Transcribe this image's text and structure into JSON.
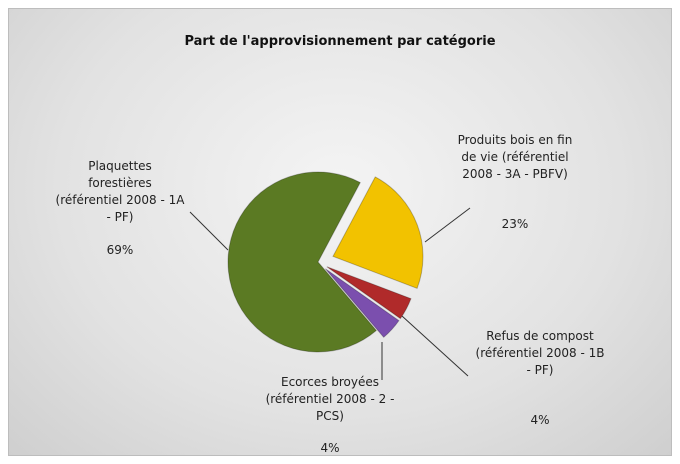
{
  "chart_data": {
    "type": "pie",
    "title": "Part  de l'approvisionnement par catégorie",
    "categories": [
      "Produits bois en fin de vie (référentiel 2008 - 3A - PBFV)",
      "Refus de compost (référentiel 2008 - 1B - PF)",
      "Ecorces broyées (référentiel 2008 - 2 - PCS)",
      "Plaquettes forestières (référentiel 2008 - 1A - PF)"
    ],
    "values": [
      23,
      4,
      4,
      69
    ],
    "value_labels": [
      "23%",
      "4%",
      "4%",
      "69%"
    ],
    "colors": [
      "#f2c200",
      "#b02a2a",
      "#7b4fae",
      "#5b7a23"
    ]
  }
}
